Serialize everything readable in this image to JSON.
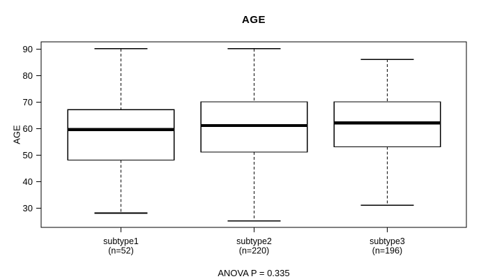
{
  "title": "AGE",
  "annotation": "ANOVA P = 0.335",
  "chart_data": {
    "type": "boxplot",
    "title": "AGE",
    "xlabel": "",
    "ylabel": "AGE",
    "ylim": [
      22.6,
      92.6
    ],
    "y_ticks": [
      30,
      40,
      50,
      60,
      70,
      80,
      90
    ],
    "grid": false,
    "legend": "none",
    "annotation": "ANOVA P = 0.335",
    "groups": [
      {
        "label": "subtype1",
        "n_label": "(n=52)",
        "n": 52,
        "whisker_low": 28,
        "q1": 48,
        "median": 59.5,
        "q3": 67,
        "whisker_high": 90
      },
      {
        "label": "subtype2",
        "n_label": "(n=220)",
        "n": 220,
        "whisker_low": 25,
        "q1": 51,
        "median": 61,
        "q3": 70,
        "whisker_high": 90
      },
      {
        "label": "subtype3",
        "n_label": "(n=196)",
        "n": 196,
        "whisker_low": 31,
        "q1": 53,
        "median": 62,
        "q3": 70,
        "whisker_high": 86
      }
    ],
    "colors": {
      "line": "#000000",
      "box_fill": "#ffffff",
      "text": "#000000",
      "background": "#ffffff"
    }
  }
}
